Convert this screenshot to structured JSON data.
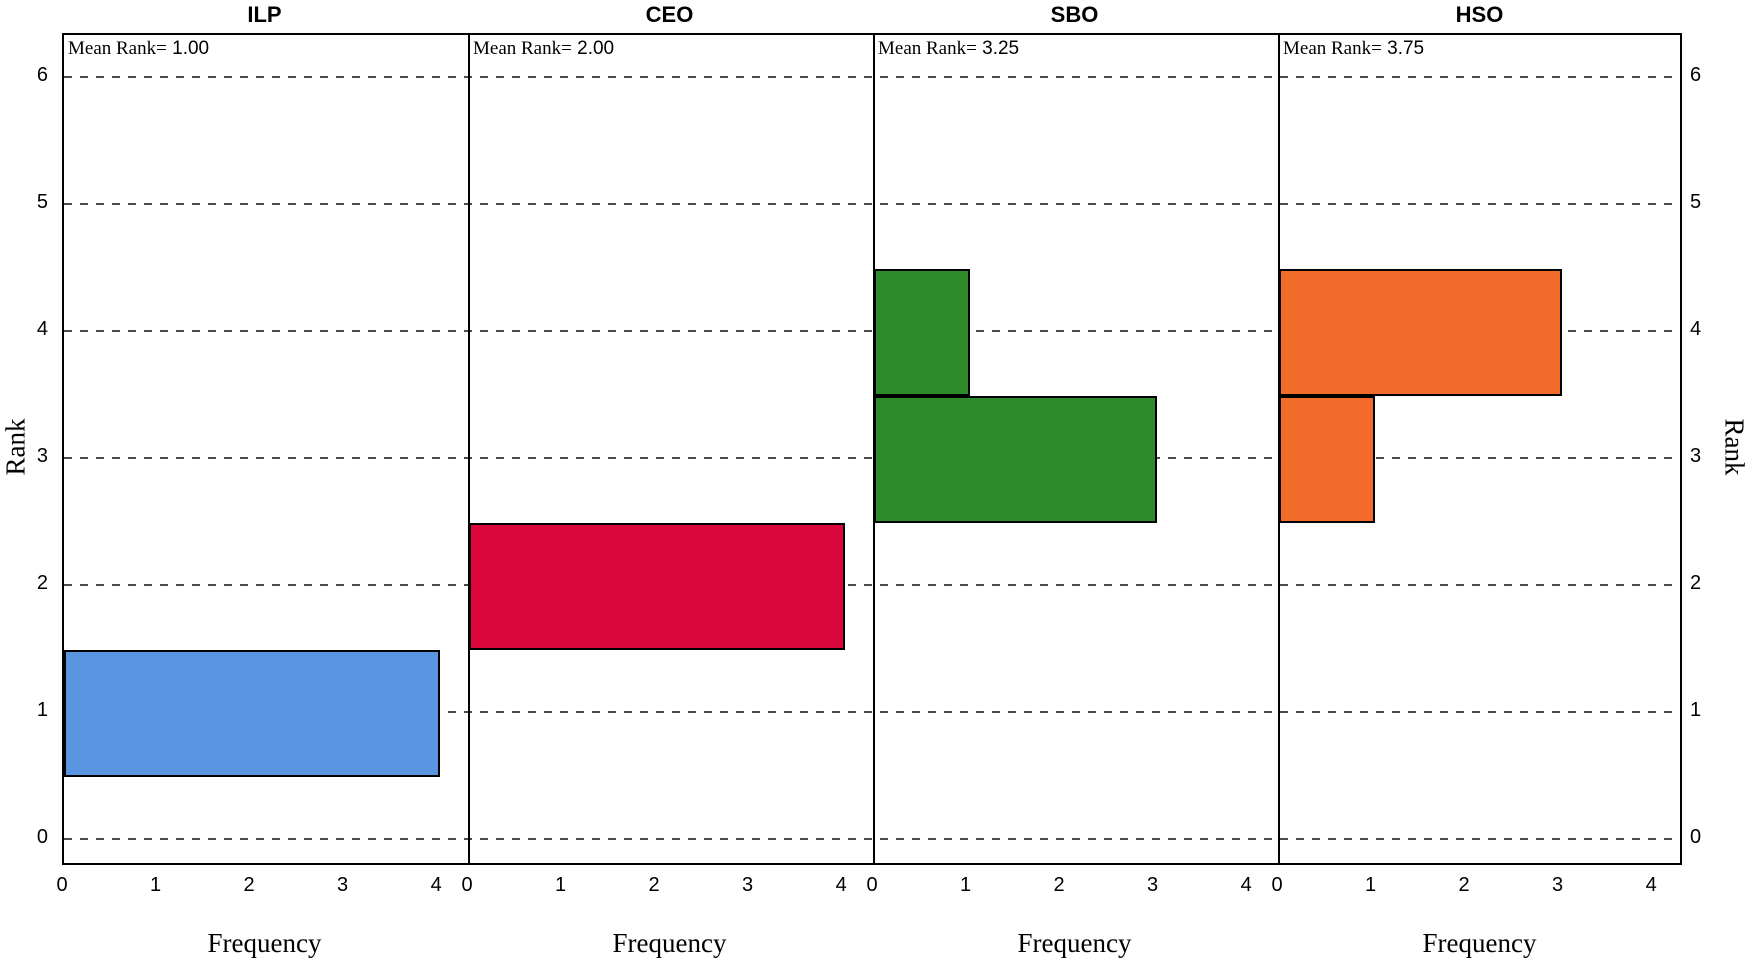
{
  "figure": {
    "background": "#ffffff",
    "frame_color": "#000000",
    "gridline_color": "#4b4b4b"
  },
  "chart_data": {
    "type": "bar",
    "orientation": "horizontal",
    "xlabel": "Frequency",
    "ylabel": "Rank",
    "x_ticks": [
      0,
      1,
      2,
      3,
      4
    ],
    "x_axis_max": 4.33,
    "rank_ticks": [
      0,
      1,
      2,
      3,
      4,
      5,
      6
    ],
    "rank_axis_min": -0.21,
    "rank_axis_max": 6.34,
    "bar_bin_half_width": 0.5,
    "grid": "dashed horizontal lines at every rank tick, spanning all panels",
    "legend_position": "none",
    "panels": [
      {
        "title": "ILP",
        "mean_rank_prefix": "Mean Rank=",
        "mean_rank": "1.00",
        "color": "#5A95E1",
        "bars": [
          {
            "rank": 1,
            "frequency": 4
          }
        ]
      },
      {
        "title": "CEO",
        "mean_rank_prefix": "Mean Rank=",
        "mean_rank": "2.00",
        "color": "#D9053B",
        "bars": [
          {
            "rank": 2,
            "frequency": 4
          }
        ]
      },
      {
        "title": "SBO",
        "mean_rank_prefix": "Mean Rank=",
        "mean_rank": "3.25",
        "color": "#2E8B2B",
        "bars": [
          {
            "rank": 4,
            "frequency": 1
          },
          {
            "rank": 3,
            "frequency": 3
          }
        ]
      },
      {
        "title": "HSO",
        "mean_rank_prefix": "Mean Rank=",
        "mean_rank": "3.75",
        "color": "#F26B2B",
        "bars": [
          {
            "rank": 4,
            "frequency": 3
          },
          {
            "rank": 3,
            "frequency": 1
          }
        ]
      }
    ]
  }
}
